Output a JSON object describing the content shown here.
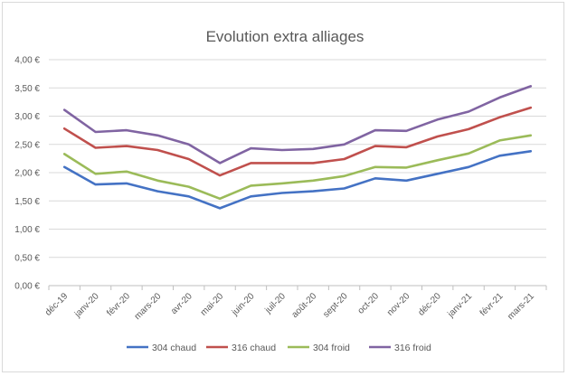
{
  "chart_data": {
    "type": "line",
    "title": "Evolution extra alliages",
    "categories": [
      "déc-19",
      "janv-20",
      "févr-20",
      "mars-20",
      "avr-20",
      "mai-20",
      "juin-20",
      "juil-20",
      "août-20",
      "sept-20",
      "oct-20",
      "nov-20",
      "déc-20",
      "janv-21",
      "févr-21",
      "mars-21"
    ],
    "ylim": [
      0,
      4
    ],
    "yticks": [
      0,
      0.5,
      1,
      1.5,
      2,
      2.5,
      3,
      3.5,
      4
    ],
    "ytick_labels": [
      "0,00 €",
      "0,50 €",
      "1,00 €",
      "1,50 €",
      "2,00 €",
      "2,50 €",
      "3,00 €",
      "3,50 €",
      "4,00 €"
    ],
    "grid": true,
    "legend_position": "bottom",
    "series": [
      {
        "name": "304 chaud",
        "color": "#4472C4",
        "values": [
          2.1,
          1.79,
          1.81,
          1.67,
          1.58,
          1.37,
          1.58,
          1.64,
          1.67,
          1.72,
          1.9,
          1.86,
          1.98,
          2.1,
          2.3,
          2.38
        ]
      },
      {
        "name": "316 chaud",
        "color": "#C0504D",
        "values": [
          2.78,
          2.44,
          2.47,
          2.4,
          2.24,
          1.95,
          2.17,
          2.17,
          2.17,
          2.24,
          2.47,
          2.45,
          2.64,
          2.77,
          2.98,
          3.15
        ]
      },
      {
        "name": "304 froid",
        "color": "#9BBB59",
        "values": [
          2.33,
          1.98,
          2.02,
          1.86,
          1.75,
          1.54,
          1.77,
          1.81,
          1.86,
          1.94,
          2.1,
          2.09,
          2.22,
          2.34,
          2.57,
          2.66
        ]
      },
      {
        "name": "316 froid",
        "color": "#8064A2",
        "values": [
          3.11,
          2.72,
          2.75,
          2.66,
          2.5,
          2.17,
          2.43,
          2.4,
          2.42,
          2.5,
          2.75,
          2.74,
          2.94,
          3.08,
          3.33,
          3.53
        ]
      }
    ]
  }
}
